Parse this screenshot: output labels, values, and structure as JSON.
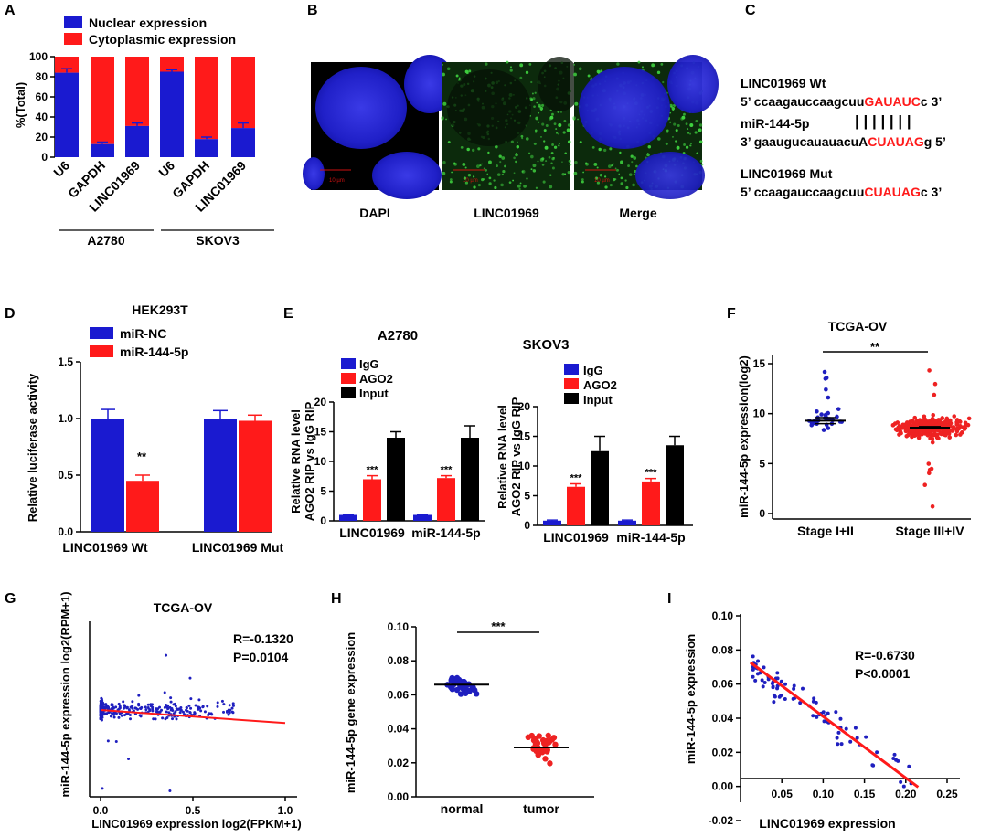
{
  "colors": {
    "blue": "#1a1ad0",
    "red": "#ff1a1a",
    "black": "#000000",
    "dot_blue": "#1f1fbf",
    "dot_red": "#ee2222"
  },
  "panels": {
    "A": {
      "letter": "A",
      "legend": [
        "Nuclear expression",
        "Cytoplasmic expression"
      ],
      "ylabel": "%(Total)",
      "yticks": [
        "0",
        "20",
        "40",
        "60",
        "80",
        "100"
      ],
      "groups": [
        "A2780",
        "SKOV3"
      ],
      "chart_data": {
        "type": "bar",
        "stacked": true,
        "categories": [
          "U6",
          "GAPDH",
          "LINC01969",
          "U6",
          "GAPDH",
          "LINC01969"
        ],
        "series": [
          {
            "name": "Nuclear expression",
            "values": [
              84,
              13,
              31,
              85,
              18,
              29
            ]
          },
          {
            "name": "Cytoplasmic expression",
            "values": [
              16,
              87,
              69,
              15,
              82,
              71
            ]
          }
        ],
        "errors": [
          4,
          2,
          3,
          2,
          2,
          5
        ],
        "ylim": [
          0,
          100
        ]
      }
    },
    "B": {
      "letter": "B",
      "labels": [
        "DAPI",
        "LINC01969",
        "Merge"
      ],
      "scale": "10 µm"
    },
    "C": {
      "letter": "C",
      "wt_title": "LINC01969  Wt",
      "wt_pre": "5’ ccaagauccaagcuu",
      "wt_red": "GAUAUC",
      "wt_post": "c 3’",
      "mir_title": "miR-144-5p",
      "bars": "|  |  |  |  |  |  |",
      "mir_pre": "3’ gaaugucauauacuA",
      "mir_red": "CUAUAG",
      "mir_post": "g 5’",
      "mut_title": "LINC01969  Mut",
      "mut_pre": "5’ ccaagauccaagcuu",
      "mut_red": "CUAUAG",
      "mut_post": "c 3’"
    },
    "D": {
      "letter": "D",
      "title": "HEK293T",
      "legend": [
        "miR-NC",
        "miR-144-5p"
      ],
      "ylabel": "Relative luciferase activity",
      "yticks": [
        "0.0",
        "0.5",
        "1.0",
        "1.5"
      ],
      "xlabels": [
        "LINC01969  Wt",
        "LINC01969  Mut"
      ],
      "sig": "**",
      "chart_data": {
        "type": "bar",
        "categories": [
          "LINC01969 Wt",
          "LINC01969 Mut"
        ],
        "series": [
          {
            "name": "miR-NC",
            "values": [
              1.0,
              1.0
            ],
            "errors": [
              0.08,
              0.07
            ]
          },
          {
            "name": "miR-144-5p",
            "values": [
              0.45,
              0.98
            ],
            "errors": [
              0.05,
              0.05
            ]
          }
        ],
        "ylim": [
          0,
          1.5
        ]
      }
    },
    "E": {
      "letter": "E",
      "ylabel1": "Relative RNA level",
      "ylabel2": "AGO2 RIP vs IgG RIP",
      "legend": [
        "IgG",
        "AGO2",
        "Input"
      ],
      "yticks": [
        "0",
        "5",
        "10",
        "15",
        "20"
      ],
      "sig": "***",
      "chart_data": [
        {
          "type": "bar",
          "title": "A2780",
          "categories": [
            "LINC01969",
            "miR-144-5p"
          ],
          "series": [
            {
              "name": "IgG",
              "values": [
                1.0,
                1.0
              ],
              "errors": [
                0.1,
                0.1
              ]
            },
            {
              "name": "AGO2",
              "values": [
                7.0,
                7.2
              ],
              "errors": [
                0.6,
                0.4
              ]
            },
            {
              "name": "Input",
              "values": [
                14.0,
                14.0
              ],
              "errors": [
                1.0,
                2.0
              ]
            }
          ],
          "ylim": [
            0,
            20
          ]
        },
        {
          "type": "bar",
          "title": "SKOV3",
          "categories": [
            "LINC01969",
            "miR-144-5p"
          ],
          "series": [
            {
              "name": "IgG",
              "values": [
                0.8,
                0.8
              ],
              "errors": [
                0.1,
                0.1
              ]
            },
            {
              "name": "AGO2",
              "values": [
                6.5,
                7.4
              ],
              "errors": [
                0.5,
                0.5
              ]
            },
            {
              "name": "Input",
              "values": [
                12.5,
                13.5
              ],
              "errors": [
                2.5,
                1.5
              ]
            }
          ],
          "ylim": [
            0,
            20
          ]
        }
      ]
    },
    "F": {
      "letter": "F",
      "title": "TCGA-OV",
      "ylabel": "miR-144-5p expression(log2)",
      "yticks": [
        "0",
        "5",
        "10",
        "15"
      ],
      "xlabels": [
        "Stage I+II",
        "Stage III+IV"
      ],
      "sig": "**",
      "chart_data": {
        "type": "scatter",
        "groups": [
          {
            "name": "Stage I+II",
            "mean": 9.3,
            "sem": 0.3,
            "n": 30,
            "range": [
              7.3,
              14.5
            ]
          },
          {
            "name": "Stage III+IV",
            "mean": 8.6,
            "sem": 0.1,
            "n": 300,
            "range": [
              0,
              14.5
            ]
          }
        ],
        "ylim": [
          0,
          15
        ]
      }
    },
    "G": {
      "letter": "G",
      "title": "TCGA-OV",
      "ylabel": "miR-144-5p expression log2(RPM+1)",
      "xlabel": "LINC01969 expression log2(FPKM+1)",
      "stat_r": "R=-0.1320",
      "stat_p": "P=0.0104",
      "xticks": [
        "0.0",
        "0.5",
        "1.0"
      ],
      "chart_data": {
        "type": "scatter",
        "n": 370,
        "fit": {
          "slope": -1.1,
          "intercept": 7.0
        },
        "xlim": [
          0,
          1.0
        ],
        "ylim": [
          0,
          14
        ]
      }
    },
    "H": {
      "letter": "H",
      "ylabel": "miR-144-5p gene expression",
      "yticks": [
        "0.00",
        "0.02",
        "0.04",
        "0.06",
        "0.08",
        "0.10"
      ],
      "xlabels": [
        "normal",
        "tumor"
      ],
      "sig": "***",
      "chart_data": {
        "type": "scatter",
        "groups": [
          {
            "name": "normal",
            "mean": 0.066,
            "range": [
              0.052,
              0.082
            ],
            "n": 40
          },
          {
            "name": "tumor",
            "mean": 0.029,
            "range": [
              0.005,
              0.049
            ],
            "n": 40
          }
        ],
        "ylim": [
          0,
          0.1
        ]
      }
    },
    "I": {
      "letter": "I",
      "ylabel": "miR-144-5p expression",
      "xlabel": "LINC01969 expression",
      "stat_r": "R=-0.6730",
      "stat_p": "P<0.0001",
      "yticks": [
        "-0.02",
        "0.00",
        "0.02",
        "0.04",
        "0.06",
        "0.08",
        "0.10"
      ],
      "xticks": [
        "0.05",
        "0.10",
        "0.15",
        "0.20",
        "0.25"
      ],
      "chart_data": {
        "type": "scatter",
        "n": 80,
        "fit": {
          "slope": -0.36,
          "intercept": 0.077
        },
        "xlim": [
          0,
          0.25
        ],
        "ylim": [
          -0.02,
          0.1
        ]
      }
    }
  }
}
